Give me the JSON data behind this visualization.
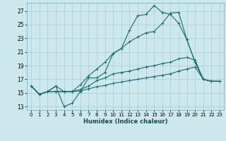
{
  "xlabel": "Humidex (Indice chaleur)",
  "ylabel": "",
  "bg_color": "#cce8ed",
  "grid_color": "#aaccd4",
  "line_color": "#1a6b6b",
  "xlim": [
    -0.5,
    23.5
  ],
  "ylim": [
    12.5,
    28.2
  ],
  "yticks": [
    13,
    15,
    17,
    19,
    21,
    23,
    25,
    27
  ],
  "xticks": [
    0,
    1,
    2,
    3,
    4,
    5,
    6,
    7,
    8,
    9,
    10,
    11,
    12,
    13,
    14,
    15,
    16,
    17,
    18,
    19,
    20,
    21,
    22,
    23
  ],
  "series": [
    [
      16,
      14.8,
      15.2,
      16,
      13,
      13.5,
      15.2,
      17.2,
      17.2,
      18,
      20.8,
      21.5,
      24.2,
      26.3,
      26.5,
      27.8,
      26.8,
      26.5,
      25.2,
      22.8,
      19.5,
      17.0,
      16.7,
      16.7
    ],
    [
      16,
      14.8,
      15.2,
      16,
      15.2,
      15.2,
      16.2,
      17.5,
      18.5,
      19.5,
      20.8,
      21.5,
      22.5,
      23.2,
      23.8,
      24.0,
      25.2,
      26.7,
      26.8,
      22.8,
      19.5,
      17.0,
      16.7,
      16.7
    ],
    [
      16,
      14.8,
      15.2,
      15.2,
      15.2,
      15.2,
      15.5,
      16.0,
      16.8,
      17.2,
      17.8,
      18.0,
      18.2,
      18.5,
      18.8,
      19.0,
      19.3,
      19.5,
      20.0,
      20.2,
      19.8,
      17.0,
      16.7,
      16.7
    ],
    [
      16,
      14.8,
      15.2,
      15.2,
      15.2,
      15.2,
      15.3,
      15.6,
      15.9,
      16.1,
      16.4,
      16.6,
      16.8,
      17.0,
      17.2,
      17.4,
      17.6,
      17.8,
      18.2,
      18.5,
      18.8,
      17.0,
      16.7,
      16.7
    ]
  ]
}
